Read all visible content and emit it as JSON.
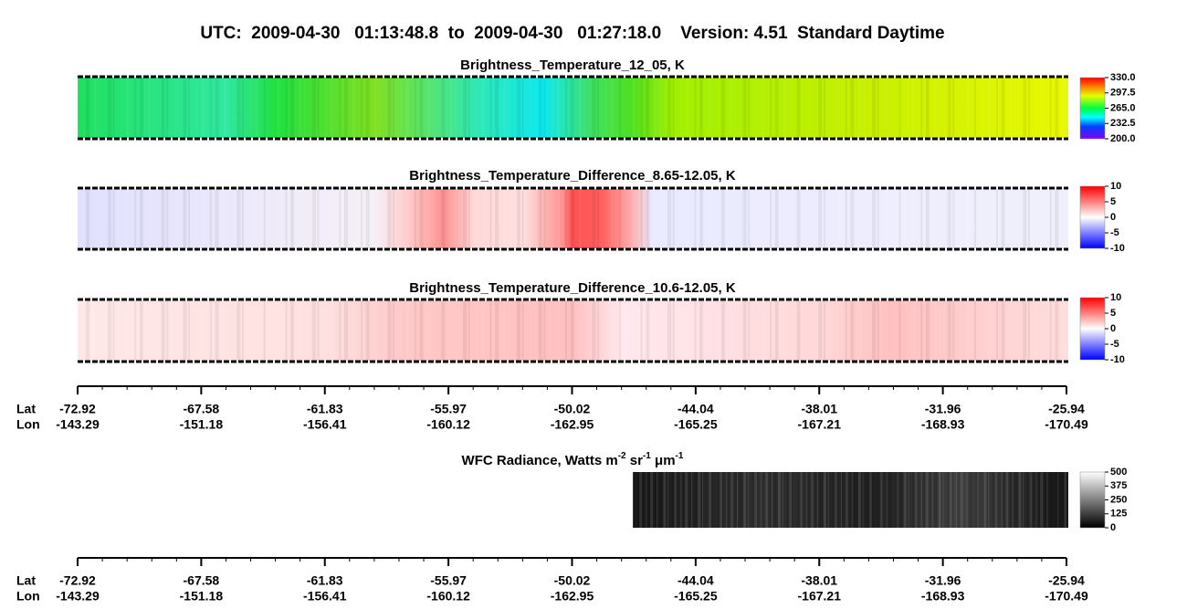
{
  "header": {
    "title": "UTC:  2009-04-30   01:13:48.8  to  2009-04-30   01:27:18.0    Version: 4.51  Standard Daytime"
  },
  "panels": [
    {
      "title": [
        "Brightness_Temperature_12_05, K"
      ],
      "colorbar": [
        "330.0",
        "297.5",
        "265.0",
        "232.5",
        "200.0"
      ]
    },
    {
      "title": [
        "Brightness_Temperature_Difference_8.65-12.05, K"
      ],
      "colorbar": [
        "10",
        "5",
        "0",
        "-5",
        "-10"
      ]
    },
    {
      "title": [
        "Brightness_Temperature_Difference_10.6-12.05, K"
      ],
      "colorbar": [
        "10",
        "5",
        "0",
        "-5",
        "-10"
      ]
    },
    {
      "title": [
        "WFC Radiance, Watts m",
        "-2",
        " sr",
        "-1",
        " μm",
        "-1"
      ],
      "colorbar": [
        "500",
        "375",
        "250",
        "125",
        "0"
      ]
    }
  ],
  "axes": [
    {
      "lat_label": "Lat",
      "lon_label": "Lon",
      "lat": [
        "-72.92",
        "-67.58",
        "-61.83",
        "-55.97",
        "-50.02",
        "-44.04",
        "-38.01",
        "-31.96",
        "-25.94"
      ],
      "lon": [
        "-143.29",
        "-151.18",
        "-156.41",
        "-160.12",
        "-162.95",
        "-165.25",
        "-167.21",
        "-168.93",
        "-170.49"
      ]
    },
    {
      "lat_label": "Lat",
      "lon_label": "Lon",
      "lat": [
        "-72.92",
        "-67.58",
        "-61.83",
        "-55.97",
        "-50.02",
        "-44.04",
        "-38.01",
        "-31.96",
        "-25.94"
      ],
      "lon": [
        "-143.29",
        "-151.18",
        "-156.41",
        "-160.12",
        "-162.95",
        "-165.25",
        "-167.21",
        "-168.93",
        "-170.49"
      ]
    }
  ]
}
